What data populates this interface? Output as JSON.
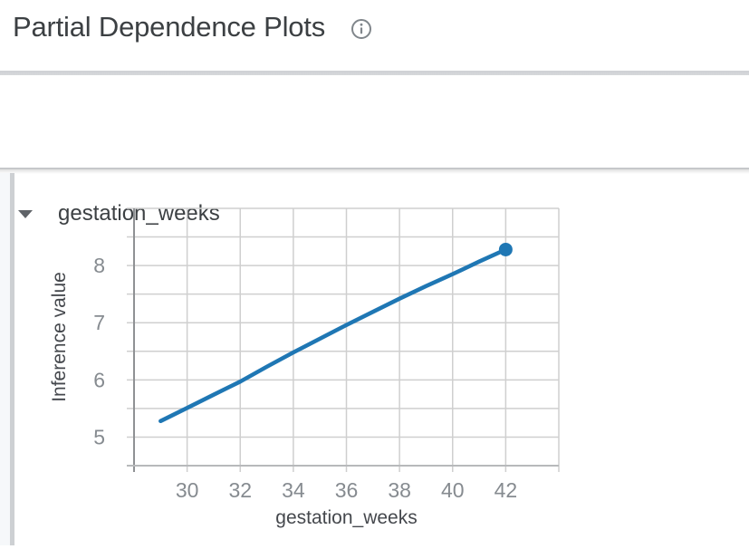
{
  "header": {
    "title": "Partial Dependence Plots",
    "info_icon": "info-icon"
  },
  "section": {
    "expander_label": "gestation_weeks",
    "expanded": true,
    "chevron_icon": "chevron-down-icon"
  },
  "chart_data": {
    "type": "line",
    "title": "",
    "xlabel": "gestation_weeks",
    "ylabel": "Inference value",
    "xlim": [
      28,
      44
    ],
    "ylim": [
      4.5,
      9.0
    ],
    "x_grid_step": 2,
    "y_grid_step": 0.5,
    "x_tick_labels": [
      30,
      32,
      34,
      36,
      38,
      40,
      42
    ],
    "y_tick_labels": [
      5,
      6,
      7,
      8
    ],
    "grid": true,
    "legend": "none",
    "series": [
      {
        "name": "gestation_weeks",
        "x": [
          29,
          30,
          31,
          32,
          33,
          34,
          35,
          36,
          37,
          38,
          39,
          40,
          41,
          42
        ],
        "y": [
          5.28,
          5.51,
          5.74,
          5.97,
          6.23,
          6.48,
          6.72,
          6.96,
          7.19,
          7.42,
          7.64,
          7.85,
          8.07,
          8.28
        ]
      }
    ],
    "endpoint_marker": {
      "x": 42,
      "y": 8.28
    }
  },
  "colors": {
    "line": "#1f77b4",
    "grid": "#cfcfcf",
    "axis_y": "#8f9194",
    "axis_x": "#b7b9bb",
    "tick_label": "#868b90",
    "axis_title": "#45484d",
    "title_text": "#3c4043",
    "feature_text": "#3c4043",
    "icon_gray": "#80868b",
    "chevron": "#5f6368"
  }
}
